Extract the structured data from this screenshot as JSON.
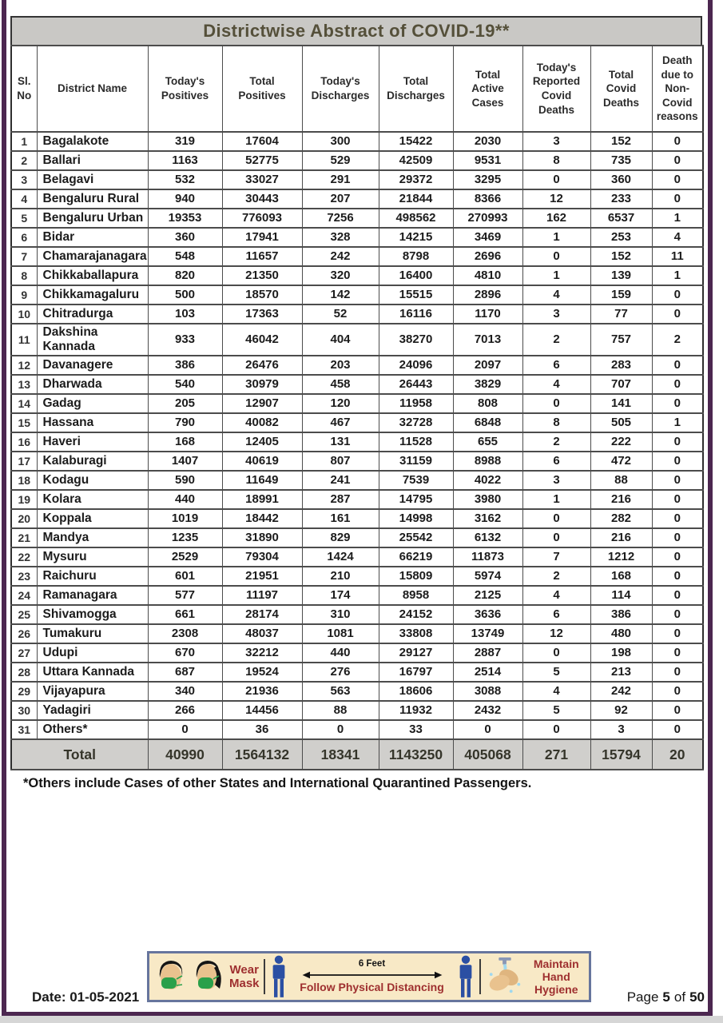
{
  "title": "Districtwise Abstract of COVID-19**",
  "table": {
    "headers": [
      "Sl.\nNo",
      "District Name",
      "Today's\nPositives",
      "Total\nPositives",
      "Today's\nDischarges",
      "Total\nDischarges",
      "Total\nActive\nCases",
      "Today's\nReported\nCovid\nDeaths",
      "Total\nCovid\nDeaths",
      "Death\ndue to\nNon-\nCovid\nreasons"
    ],
    "rows": [
      [
        1,
        "Bagalakote",
        319,
        17604,
        300,
        15422,
        2030,
        3,
        152,
        0
      ],
      [
        2,
        "Ballari",
        1163,
        52775,
        529,
        42509,
        9531,
        8,
        735,
        0
      ],
      [
        3,
        "Belagavi",
        532,
        33027,
        291,
        29372,
        3295,
        0,
        360,
        0
      ],
      [
        4,
        "Bengaluru Rural",
        940,
        30443,
        207,
        21844,
        8366,
        12,
        233,
        0
      ],
      [
        5,
        "Bengaluru Urban",
        19353,
        776093,
        7256,
        498562,
        270993,
        162,
        6537,
        1
      ],
      [
        6,
        "Bidar",
        360,
        17941,
        328,
        14215,
        3469,
        1,
        253,
        4
      ],
      [
        7,
        "Chamarajanagara",
        548,
        11657,
        242,
        8798,
        2696,
        0,
        152,
        11
      ],
      [
        8,
        "Chikkaballapura",
        820,
        21350,
        320,
        16400,
        4810,
        1,
        139,
        1
      ],
      [
        9,
        "Chikkamagaluru",
        500,
        18570,
        142,
        15515,
        2896,
        4,
        159,
        0
      ],
      [
        10,
        "Chitradurga",
        103,
        17363,
        52,
        16116,
        1170,
        3,
        77,
        0
      ],
      [
        11,
        "Dakshina\nKannada",
        933,
        46042,
        404,
        38270,
        7013,
        2,
        757,
        2
      ],
      [
        12,
        "Davanagere",
        386,
        26476,
        203,
        24096,
        2097,
        6,
        283,
        0
      ],
      [
        13,
        "Dharwada",
        540,
        30979,
        458,
        26443,
        3829,
        4,
        707,
        0
      ],
      [
        14,
        "Gadag",
        205,
        12907,
        120,
        11958,
        808,
        0,
        141,
        0
      ],
      [
        15,
        "Hassana",
        790,
        40082,
        467,
        32728,
        6848,
        8,
        505,
        1
      ],
      [
        16,
        "Haveri",
        168,
        12405,
        131,
        11528,
        655,
        2,
        222,
        0
      ],
      [
        17,
        "Kalaburagi",
        1407,
        40619,
        807,
        31159,
        8988,
        6,
        472,
        0
      ],
      [
        18,
        "Kodagu",
        590,
        11649,
        241,
        7539,
        4022,
        3,
        88,
        0
      ],
      [
        19,
        "Kolara",
        440,
        18991,
        287,
        14795,
        3980,
        1,
        216,
        0
      ],
      [
        20,
        "Koppala",
        1019,
        18442,
        161,
        14998,
        3162,
        0,
        282,
        0
      ],
      [
        21,
        "Mandya",
        1235,
        31890,
        829,
        25542,
        6132,
        0,
        216,
        0
      ],
      [
        22,
        "Mysuru",
        2529,
        79304,
        1424,
        66219,
        11873,
        7,
        1212,
        0
      ],
      [
        23,
        "Raichuru",
        601,
        21951,
        210,
        15809,
        5974,
        2,
        168,
        0
      ],
      [
        24,
        "Ramanagara",
        577,
        11197,
        174,
        8958,
        2125,
        4,
        114,
        0
      ],
      [
        25,
        "Shivamogga",
        661,
        28174,
        310,
        24152,
        3636,
        6,
        386,
        0
      ],
      [
        26,
        "Tumakuru",
        2308,
        48037,
        1081,
        33808,
        13749,
        12,
        480,
        0
      ],
      [
        27,
        "Udupi",
        670,
        32212,
        440,
        29127,
        2887,
        0,
        198,
        0
      ],
      [
        28,
        "Uttara Kannada",
        687,
        19524,
        276,
        16797,
        2514,
        5,
        213,
        0
      ],
      [
        29,
        "Vijayapura",
        340,
        21936,
        563,
        18606,
        3088,
        4,
        242,
        0
      ],
      [
        30,
        "Yadagiri",
        266,
        14456,
        88,
        11932,
        2432,
        5,
        92,
        0
      ],
      [
        31,
        "Others*",
        0,
        36,
        0,
        33,
        0,
        0,
        3,
        0
      ]
    ],
    "total_label": "Total",
    "totals": [
      40990,
      1564132,
      18341,
      1143250,
      405068,
      271,
      15794,
      20
    ]
  },
  "footnote": "*Others include Cases of other States and International Quarantined Passengers.",
  "footer": {
    "date": "Date: 01-05-2021",
    "page_prefix": "Page",
    "page_number": "5",
    "page_of": "of",
    "page_total": "50",
    "banner": {
      "wear_mask": "Wear\nMask",
      "six_feet": "6 Feet",
      "distancing": "Follow Physical Distancing",
      "hand_hygiene": "Maintain\nHand Hygiene"
    }
  },
  "colors": {
    "frame_purple": "#4c2750",
    "titlebar_gray": "#c9c8c5",
    "title_text": "#55503a",
    "total_row_gray": "#d0cfcc",
    "banner_bg": "#f8e9c6",
    "banner_border": "#67759d",
    "banner_red_text": "#9e2f2f",
    "person_blue": "#2b4fa3",
    "mask_green": "#2ba04a",
    "skin": "#e9c28e"
  }
}
